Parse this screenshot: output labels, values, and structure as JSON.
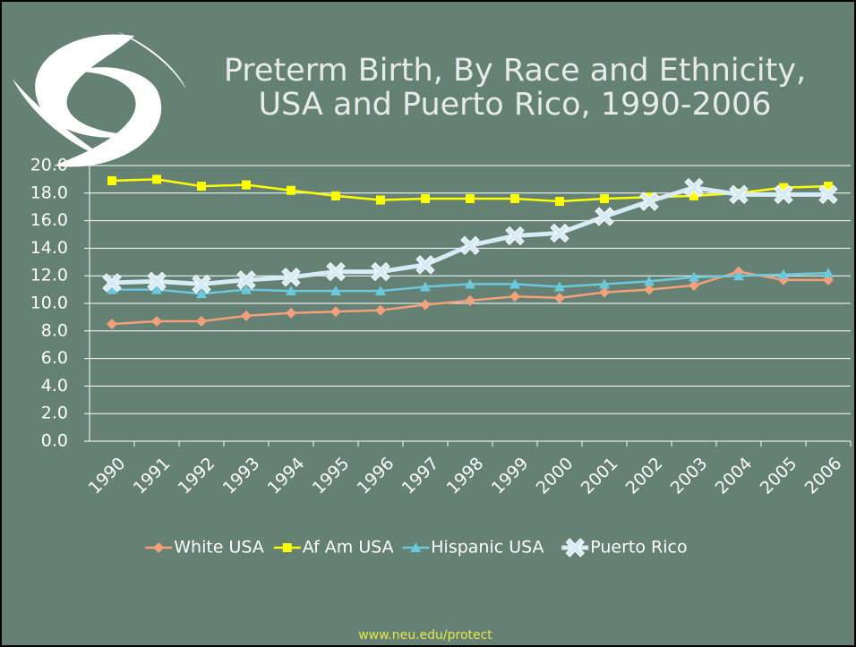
{
  "chart_data": {
    "type": "line",
    "title": [
      "Preterm Birth, By Race and Ethnicity,",
      "USA and Puerto Rico,   1990-2006"
    ],
    "source": "www.neu.edu/protect",
    "categories": [
      "1990",
      "1991",
      "1992",
      "1993",
      "1994",
      "1995",
      "1996",
      "1997",
      "1998",
      "1999",
      "2000",
      "2001",
      "2002",
      "2003",
      "2004",
      "2005",
      "2006"
    ],
    "series": [
      {
        "name": "White USA",
        "color": "#f4a07a",
        "marker": "diamond",
        "values": [
          8.5,
          8.7,
          8.7,
          9.1,
          9.3,
          9.4,
          9.5,
          9.9,
          10.2,
          10.5,
          10.4,
          10.8,
          11.0,
          11.3,
          12.3,
          11.7,
          11.7
        ]
      },
      {
        "name": "Af Am USA",
        "color": "#ffff00",
        "marker": "square",
        "values": [
          18.9,
          19.0,
          18.5,
          18.6,
          18.2,
          17.8,
          17.5,
          17.6,
          17.6,
          17.6,
          17.4,
          17.6,
          17.7,
          17.8,
          18.0,
          18.4,
          18.5
        ]
      },
      {
        "name": "Hispanic USA",
        "color": "#6cc8dc",
        "marker": "triangle",
        "values": [
          11.0,
          11.0,
          10.7,
          11.0,
          10.9,
          10.9,
          10.9,
          11.2,
          11.4,
          11.4,
          11.2,
          11.4,
          11.6,
          11.9,
          12.0,
          12.1,
          12.2
        ]
      },
      {
        "name": "Puerto Rico",
        "color": "#d6ebf5",
        "marker": "star",
        "values": [
          11.5,
          11.6,
          11.4,
          11.7,
          11.9,
          12.3,
          12.3,
          12.8,
          14.2,
          14.9,
          15.1,
          16.3,
          17.4,
          18.4,
          17.9,
          17.9,
          17.9
        ]
      }
    ],
    "ylim": [
      0,
      20
    ],
    "yticks": [
      {
        "value": 0,
        "label": "0.0"
      },
      {
        "value": 2,
        "label": "2.0"
      },
      {
        "value": 4,
        "label": "4.0"
      },
      {
        "value": 6,
        "label": "6.0"
      },
      {
        "value": 8,
        "label": "8.0"
      },
      {
        "value": 10,
        "label": "10.0"
      },
      {
        "value": 12,
        "label": "12.0"
      },
      {
        "value": 14,
        "label": "14.0"
      },
      {
        "value": 16,
        "label": "16.0"
      },
      {
        "value": 18,
        "label": "18.0"
      },
      {
        "value": 20,
        "label": "20.0"
      }
    ],
    "grid": true,
    "legend": "bottom"
  }
}
